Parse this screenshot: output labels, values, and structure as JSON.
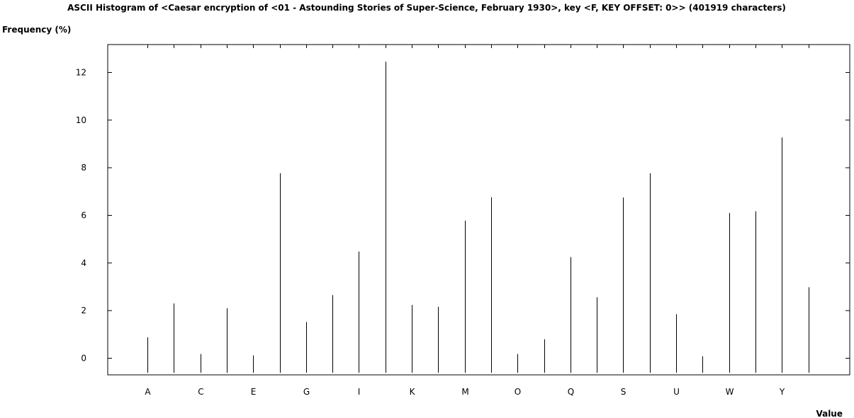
{
  "chart_data": {
    "type": "bar",
    "title": "ASCII Histogram of <Caesar encryption of <01 - Astounding Stories of Super-Science, February 1930>, key <F, KEY OFFSET: 0>> (401919 characters)",
    "xlabel": "Value",
    "ylabel": "Frequency (%)",
    "ylim": [
      -0.6,
      13.2
    ],
    "yticks": [
      0,
      2,
      4,
      6,
      8,
      10,
      12
    ],
    "grid": false,
    "legend": "none",
    "bar_color": "#000000",
    "categories": [
      "A",
      "B",
      "C",
      "D",
      "E",
      "F",
      "G",
      "H",
      "I",
      "J",
      "K",
      "L",
      "M",
      "N",
      "O",
      "P",
      "Q",
      "R",
      "S",
      "T",
      "U",
      "V",
      "W",
      "X",
      "Y",
      "Z"
    ],
    "tick_labels": [
      "A",
      "C",
      "E",
      "G",
      "I",
      "K",
      "M",
      "O",
      "Q",
      "S",
      "U",
      "W",
      "Y"
    ],
    "values": [
      0.88,
      2.3,
      0.18,
      2.1,
      0.12,
      7.77,
      1.52,
      2.65,
      4.48,
      12.45,
      2.24,
      2.16,
      5.78,
      6.76,
      0.18,
      0.8,
      4.25,
      2.56,
      6.75,
      7.77,
      1.85,
      0.08,
      6.1,
      6.17,
      9.27,
      2.98
    ]
  }
}
